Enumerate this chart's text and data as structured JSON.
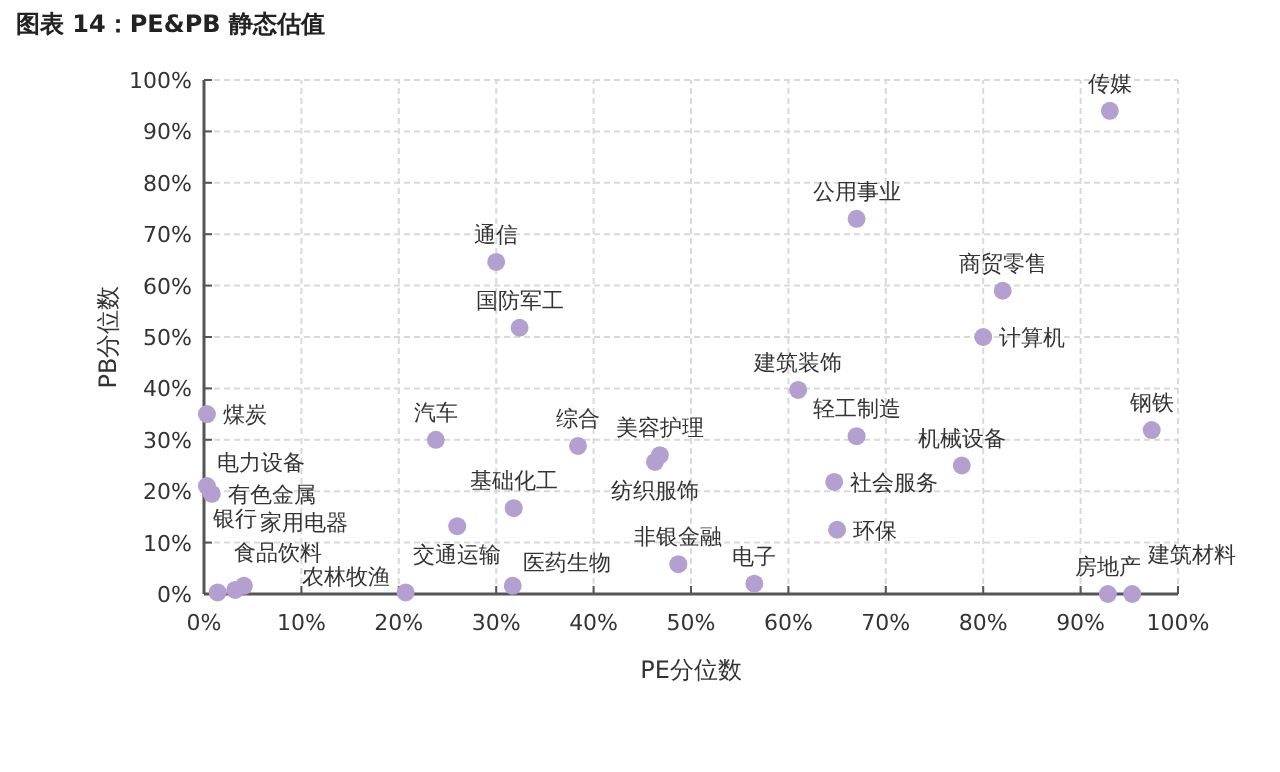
{
  "chart_data": {
    "type": "scatter",
    "title": "图表 14：PE&PB 静态估值",
    "xlabel": "PE分位数",
    "ylabel": "PB分位数",
    "xlim": [
      0,
      100
    ],
    "ylim": [
      0,
      100
    ],
    "xticks": [
      {
        "value": 0,
        "label": "0%"
      },
      {
        "value": 10,
        "label": "10%"
      },
      {
        "value": 20,
        "label": "20%"
      },
      {
        "value": 30,
        "label": "30%"
      },
      {
        "value": 40,
        "label": "40%"
      },
      {
        "value": 50,
        "label": "50%"
      },
      {
        "value": 60,
        "label": "60%"
      },
      {
        "value": 70,
        "label": "70%"
      },
      {
        "value": 80,
        "label": "80%"
      },
      {
        "value": 90,
        "label": "90%"
      },
      {
        "value": 100,
        "label": "100%"
      }
    ],
    "yticks": [
      {
        "value": 0,
        "label": "0%"
      },
      {
        "value": 10,
        "label": "10%"
      },
      {
        "value": 20,
        "label": "20%"
      },
      {
        "value": 30,
        "label": "30%"
      },
      {
        "value": 40,
        "label": "40%"
      },
      {
        "value": 50,
        "label": "50%"
      },
      {
        "value": 60,
        "label": "60%"
      },
      {
        "value": 70,
        "label": "70%"
      },
      {
        "value": 80,
        "label": "80%"
      },
      {
        "value": 90,
        "label": "90%"
      },
      {
        "value": 100,
        "label": "100%"
      }
    ],
    "grid": true,
    "marker": "circle",
    "series": [
      {
        "color": "#b49fd1",
        "x": [
          93,
          67,
          82,
          80,
          30,
          32.4,
          61,
          67,
          77.8,
          64.7,
          65,
          97.3,
          48.7,
          56.5,
          92.8,
          95.3,
          0.3,
          23.8,
          38.4,
          46.3,
          46.8,
          31.8,
          26,
          0.3,
          0.8,
          1.4,
          3.2,
          4.1,
          20.7,
          31.7
        ],
        "values": [
          94,
          73,
          59,
          50,
          64.6,
          51.8,
          39.7,
          30.7,
          25,
          21.8,
          12.5,
          31.9,
          5.8,
          2,
          0,
          0,
          35,
          30,
          28.8,
          25.7,
          27,
          16.7,
          13.2,
          21,
          19.5,
          0.3,
          0.8,
          1.6,
          0.3,
          1.6
        ]
      }
    ],
    "annotations": [
      {
        "text": "传媒",
        "x": 93,
        "y": 94
      },
      {
        "text": "公用事业",
        "x": 67,
        "y": 73
      },
      {
        "text": "商贸零售",
        "x": 82,
        "y": 59
      },
      {
        "text": "计算机",
        "x": 80,
        "y": 50
      },
      {
        "text": "通信",
        "x": 30,
        "y": 64.6
      },
      {
        "text": "国防军工",
        "x": 32.4,
        "y": 51.8
      },
      {
        "text": "建筑装饰",
        "x": 61,
        "y": 39.7
      },
      {
        "text": "轻工制造",
        "x": 67,
        "y": 30.7
      },
      {
        "text": "机械设备",
        "x": 77.8,
        "y": 25
      },
      {
        "text": "社会服务",
        "x": 64.7,
        "y": 21.8
      },
      {
        "text": "环保",
        "x": 65,
        "y": 12.5
      },
      {
        "text": "钢铁",
        "x": 97.3,
        "y": 31.9
      },
      {
        "text": "非银金融",
        "x": 48.7,
        "y": 5.8
      },
      {
        "text": "电子",
        "x": 56.5,
        "y": 2
      },
      {
        "text": "房地产",
        "x": 92.8,
        "y": 0
      },
      {
        "text": "建筑材料",
        "x": 95.3,
        "y": 0
      },
      {
        "text": "煤炭",
        "x": 0.3,
        "y": 35
      },
      {
        "text": "汽车",
        "x": 23.8,
        "y": 30
      },
      {
        "text": "综合",
        "x": 38.4,
        "y": 28.8
      },
      {
        "text": "纺织服饰",
        "x": 46.3,
        "y": 25.7
      },
      {
        "text": "美容护理",
        "x": 46.8,
        "y": 27
      },
      {
        "text": "基础化工",
        "x": 31.8,
        "y": 16.7
      },
      {
        "text": "交通运输",
        "x": 26,
        "y": 13.2
      },
      {
        "text": "电力设备",
        "x": 0.3,
        "y": 21
      },
      {
        "text": "有色金属",
        "x": 0.8,
        "y": 19.5
      },
      {
        "text": "食品饮料",
        "x": 1.4,
        "y": 0.3
      },
      {
        "text": "银行",
        "x": 3.2,
        "y": 0.8
      },
      {
        "text": "家用电器",
        "x": 4.1,
        "y": 1.6
      },
      {
        "text": "农林牧渔",
        "x": 20.7,
        "y": 0.3
      },
      {
        "text": "医药生物",
        "x": 31.7,
        "y": 1.6
      }
    ]
  }
}
